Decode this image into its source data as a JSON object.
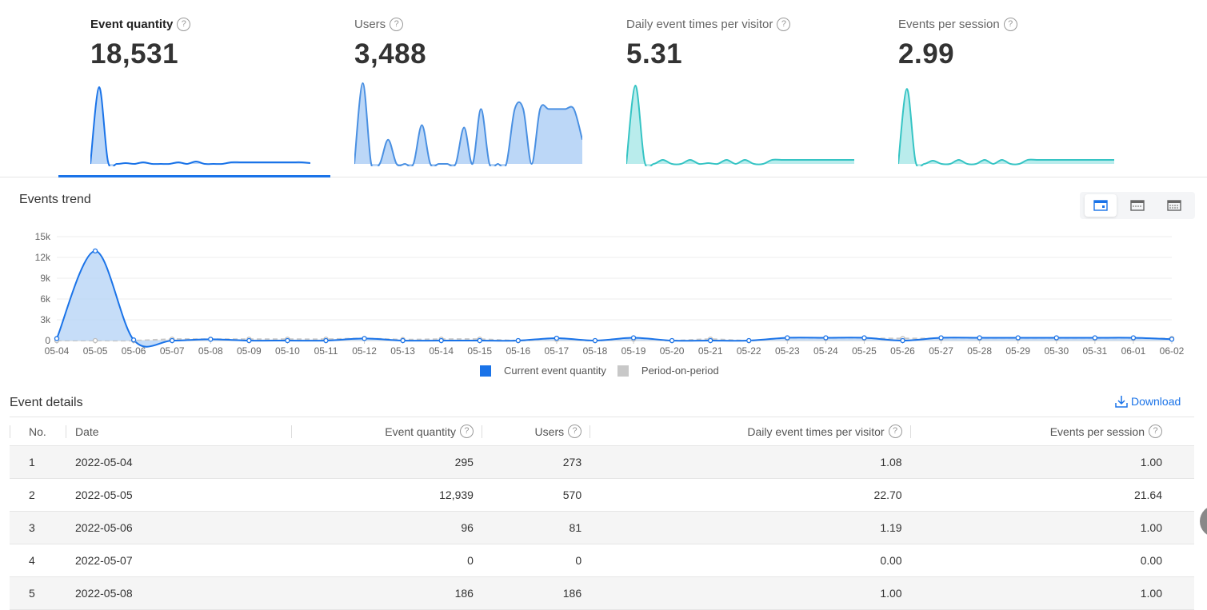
{
  "kpis": [
    {
      "label": "Event quantity",
      "value": "18,531",
      "color": "#1a73e8",
      "fill": "#bcd7f7",
      "spark": [
        0,
        95,
        3,
        0,
        1,
        0,
        2,
        0,
        0,
        0,
        2,
        0,
        3,
        0,
        0,
        0,
        2,
        2,
        2,
        2,
        2,
        2,
        2,
        2,
        2,
        1
      ]
    },
    {
      "label": "Users",
      "value": "3,488",
      "color": "#4a90e2",
      "fill": "#bcd7f7",
      "spark": [
        0,
        100,
        0,
        0,
        30,
        0,
        0,
        0,
        48,
        0,
        0,
        0,
        0,
        45,
        0,
        68,
        0,
        0,
        0,
        68,
        68,
        0,
        68,
        68,
        68,
        68,
        68,
        30
      ]
    },
    {
      "label": "Daily event times per visitor",
      "value": "5.31",
      "color": "#36c4c4",
      "fill": "#b9ecec",
      "spark": [
        0,
        97,
        3,
        0,
        5,
        0,
        0,
        5,
        0,
        1,
        0,
        5,
        0,
        5,
        0,
        0,
        5,
        5,
        5,
        5,
        5,
        5,
        5,
        5,
        5,
        5
      ]
    },
    {
      "label": "Events per session",
      "value": "2.99",
      "color": "#36c4c4",
      "fill": "#b9ecec",
      "spark": [
        0,
        93,
        3,
        0,
        4,
        0,
        0,
        5,
        0,
        0,
        5,
        0,
        5,
        0,
        0,
        5,
        5,
        5,
        5,
        5,
        5,
        5,
        5,
        5,
        5,
        5
      ]
    }
  ],
  "trend": {
    "title": "Events trend",
    "view_icons": [
      "chart-view-icon",
      "list-view-icon",
      "table-view-icon"
    ]
  },
  "chart_data": {
    "type": "line",
    "x": [
      "05-04",
      "05-05",
      "05-06",
      "05-07",
      "05-08",
      "05-09",
      "05-10",
      "05-11",
      "05-12",
      "05-13",
      "05-14",
      "05-15",
      "05-16",
      "05-17",
      "05-18",
      "05-19",
      "05-20",
      "05-21",
      "05-22",
      "05-23",
      "05-24",
      "05-25",
      "05-26",
      "05-27",
      "05-28",
      "05-29",
      "05-30",
      "05-31",
      "06-01",
      "06-02"
    ],
    "series": [
      {
        "name": "Current event quantity",
        "color": "#1a73e8",
        "values": [
          295,
          12939,
          96,
          0,
          186,
          0,
          0,
          0,
          300,
          0,
          0,
          0,
          0,
          350,
          0,
          400,
          0,
          0,
          0,
          400,
          400,
          400,
          0,
          400,
          400,
          400,
          400,
          400,
          400,
          200
        ]
      },
      {
        "name": "Period-on-period",
        "color": "#c8c8c8",
        "values": [
          0,
          0,
          0,
          200,
          200,
          200,
          200,
          200,
          300,
          150,
          200,
          200,
          0,
          150,
          0,
          200,
          0,
          200,
          0,
          300,
          300,
          300,
          300,
          300,
          300,
          300,
          300,
          300,
          300,
          300
        ]
      }
    ],
    "y_ticks": [
      "15k",
      "12k",
      "9k",
      "6k",
      "3k",
      "0"
    ],
    "ylim": [
      0,
      15000
    ],
    "grid": true,
    "legend": "bottom"
  },
  "details": {
    "title": "Event details",
    "download": "Download",
    "columns": [
      "No.",
      "Date",
      "Event quantity",
      "Users",
      "Daily event times per visitor",
      "Events per session"
    ],
    "rows": [
      [
        "1",
        "2022-05-04",
        "295",
        "273",
        "1.08",
        "1.00"
      ],
      [
        "2",
        "2022-05-05",
        "12,939",
        "570",
        "22.70",
        "21.64"
      ],
      [
        "3",
        "2022-05-06",
        "96",
        "81",
        "1.19",
        "1.00"
      ],
      [
        "4",
        "2022-05-07",
        "0",
        "0",
        "0.00",
        "0.00"
      ],
      [
        "5",
        "2022-05-08",
        "186",
        "186",
        "1.00",
        "1.00"
      ]
    ]
  }
}
